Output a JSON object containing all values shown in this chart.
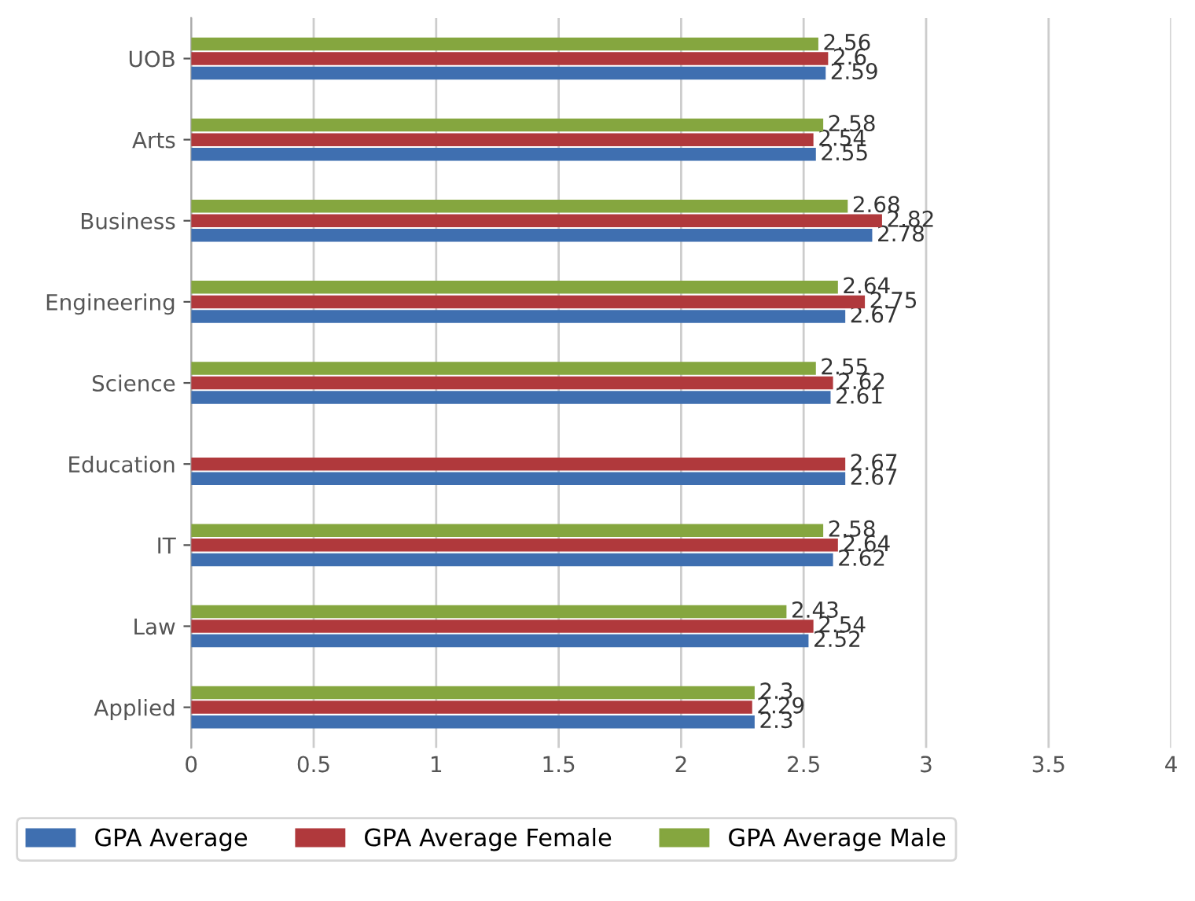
{
  "chart_data": {
    "type": "bar",
    "orientation": "horizontal",
    "categories": [
      "UOB",
      "Arts",
      "Business",
      "Engineering",
      "Science",
      "Education",
      "IT",
      "Law",
      "Applied"
    ],
    "series": [
      {
        "name": "GPA Average",
        "color": "#3f6fb0",
        "values": [
          2.59,
          2.55,
          2.78,
          2.67,
          2.61,
          2.67,
          2.62,
          2.52,
          2.3
        ]
      },
      {
        "name": "GPA Average Female",
        "color": "#b0393c",
        "values": [
          2.6,
          2.54,
          2.82,
          2.75,
          2.62,
          2.67,
          2.64,
          2.54,
          2.29
        ]
      },
      {
        "name": "GPA Average Male",
        "color": "#85a63f",
        "values": [
          2.56,
          2.58,
          2.68,
          2.64,
          2.55,
          null,
          2.58,
          2.43,
          2.3
        ]
      }
    ],
    "xlim": [
      0,
      4
    ],
    "xticks": [
      0,
      0.5,
      1,
      1.5,
      2,
      2.5,
      3,
      3.5,
      4
    ],
    "grid": "x",
    "legend": "bottom",
    "data_labels": true
  }
}
